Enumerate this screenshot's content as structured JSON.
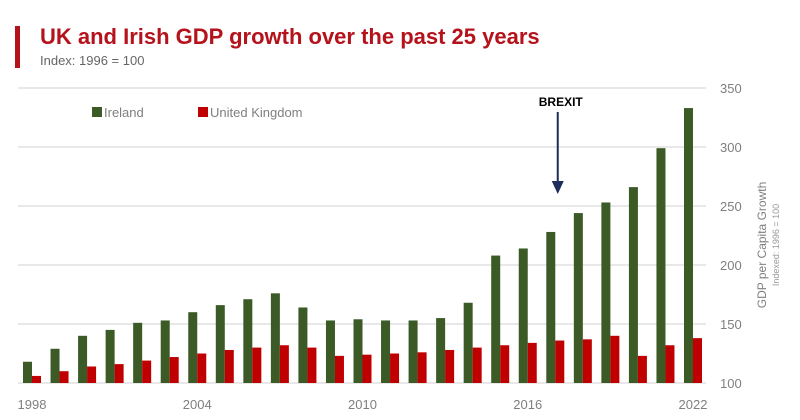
{
  "header": {
    "title": "UK and Irish GDP growth over the past 25 years",
    "subtitle": "Index: 1996 = 100",
    "accent_color": "#b5121b"
  },
  "chart_data": {
    "type": "bar",
    "title": "UK and Irish GDP growth over the past 25 years",
    "subtitle": "Index: 1996 = 100",
    "xlabel": "",
    "ylabel": "GDP per Capita Growth",
    "ylabel_sub": "Indexed: 1996 = 100",
    "y_axis_side": "right",
    "ylim": [
      100,
      350
    ],
    "yticks": [
      100,
      150,
      200,
      250,
      300,
      350
    ],
    "grid": true,
    "legend_position": "top-left",
    "categories": [
      "1998",
      "1999",
      "2000",
      "2001",
      "2002",
      "2003",
      "2004",
      "2005",
      "2006",
      "2007",
      "2008",
      "2009",
      "2010",
      "2011",
      "2012",
      "2013",
      "2014",
      "2015",
      "2016",
      "2017",
      "2018",
      "2019",
      "2020",
      "2021",
      "2022"
    ],
    "xtick_labels": [
      "1998",
      "2004",
      "2010",
      "2016",
      "2022"
    ],
    "series": [
      {
        "name": "Ireland",
        "color": "#3b5a25",
        "values": [
          118,
          129,
          140,
          145,
          151,
          153,
          160,
          166,
          171,
          176,
          164,
          153,
          154,
          153,
          153,
          155,
          168,
          208,
          214,
          228,
          244,
          253,
          266,
          299,
          333
        ]
      },
      {
        "name": "United Kingdom",
        "color": "#c00000",
        "values": [
          106,
          110,
          114,
          116,
          119,
          122,
          125,
          128,
          130,
          132,
          130,
          123,
          124,
          125,
          126,
          128,
          130,
          132,
          134,
          136,
          137,
          140,
          123,
          132,
          138
        ]
      }
    ],
    "annotations": [
      {
        "text": "BREXIT",
        "category": "2016",
        "type": "arrow-down",
        "color": "#1f2d5c"
      }
    ]
  }
}
